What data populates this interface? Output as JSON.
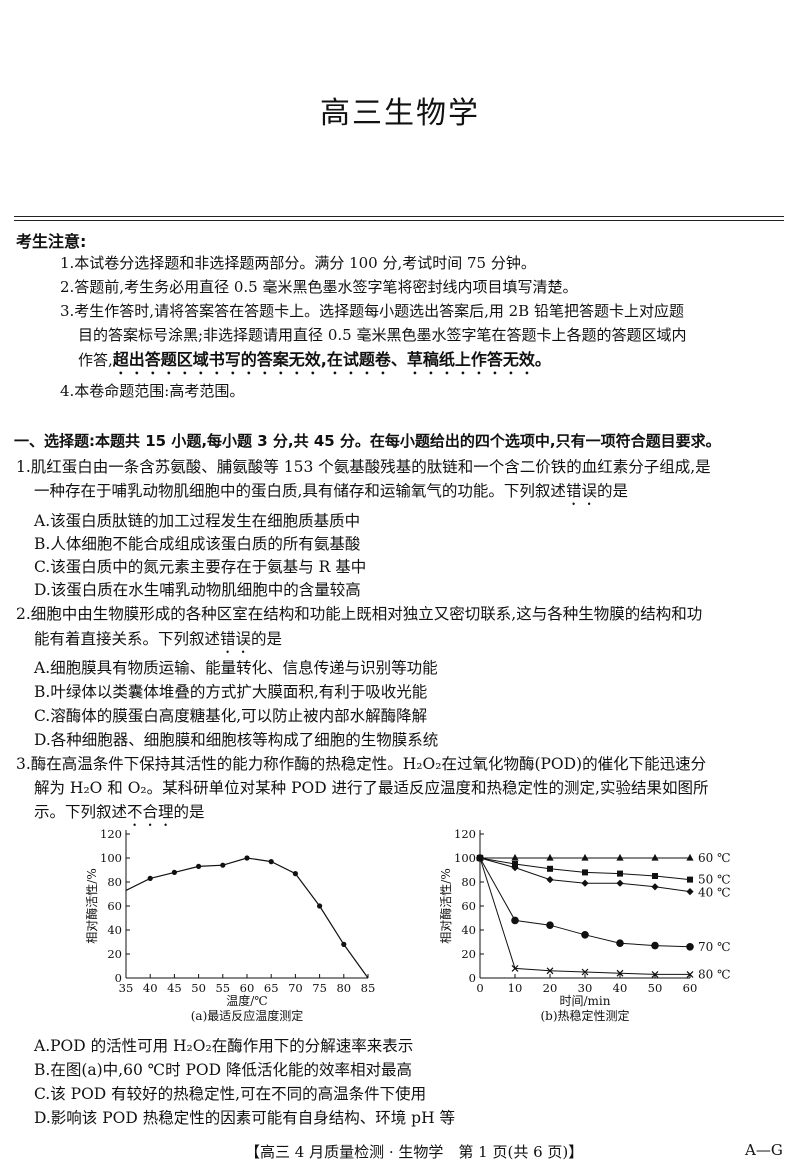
{
  "title": "高三生物学",
  "notice": {
    "heading": "考生注意:",
    "items": [
      "1.本试卷分选择题和非选择题两部分。满分 100 分,考试时间 75 分钟。",
      "2.答题前,考生务必用直径 0.5 毫米黑色墨水签字笔将密封线内项目填写清楚。",
      "3.考生作答时,请将答案答在答题卡上。选择题每小题选出答案后,用 2B 铅笔把答题卡上对应题",
      "目的答案标号涂黑;非选择题请用直径 0.5 毫米黑色墨水签字笔在答题卡上各题的答题区域内",
      "作答,",
      "超出答题区域书写的答案无效,在试题卷、草稿纸上作答无效。",
      "4.本卷命题范围:高考范围。"
    ]
  },
  "section1": "一、选择题:本题共 15 小题,每小题 3 分,共 45 分。在每小题给出的四个选项中,只有一项符合题目要求。",
  "q1": {
    "line1": "1.肌红蛋白由一条含苏氨酸、脯氨酸等 153 个氨基酸残基的肽链和一个含二价铁的血红素分子组成,是",
    "line2a": "一种存在于哺乳动物肌细胞中的蛋白质,具有储存和运输氧气的功能。下列叙述",
    "line2b": "错误",
    "line2c": "的是",
    "options": [
      "A.该蛋白质肽链的加工过程发生在细胞质基质中",
      "B.人体细胞不能合成组成该蛋白质的所有氨基酸",
      "C.该蛋白质中的氮元素主要存在于氨基与 R 基中",
      "D.该蛋白质在水生哺乳动物肌细胞中的含量较高"
    ]
  },
  "q2": {
    "line1": "2.细胞中由生物膜形成的各种区室在结构和功能上既相对独立又密切联系,这与各种生物膜的结构和功",
    "line2a": "能有着直接关系。下列叙述",
    "line2b": "错误",
    "line2c": "的是",
    "options": [
      "A.细胞膜具有物质运输、能量转化、信息传递与识别等功能",
      "B.叶绿体以类囊体堆叠的方式扩大膜面积,有利于吸收光能",
      "C.溶酶体的膜蛋白高度糖基化,可以防止被内部水解酶降解",
      "D.各种细胞器、细胞膜和细胞核等构成了细胞的生物膜系统"
    ]
  },
  "q3": {
    "line1": "3.酶在高温条件下保持其活性的能力称作酶的热稳定性。H₂O₂在过氧化物酶(POD)的催化下能迅速分",
    "line2": "解为 H₂O 和 O₂。某科研单位对某种 POD 进行了最适反应温度和热稳定性的测定,实验结果如图所",
    "line3a": "示。下列叙述",
    "line3b": "不合理",
    "line3c": "的是",
    "options": [
      "A.POD 的活性可用 H₂O₂在酶作用下的分解速率来表示",
      "B.在图(a)中,60 ℃时 POD 降低活化能的效率相对最高",
      "C.该 POD 有较好的热稳定性,可在不同的高温条件下使用",
      "D.影响该 POD 热稳定性的因素可能有自身结构、环境 pH 等"
    ]
  },
  "footer": {
    "center": "【高三 4 月质量检测 · 生物学　第 1 页(共 6 页)】",
    "right": "A—G"
  },
  "chart_data": [
    {
      "type": "line",
      "caption": "(a)最适反应温度测定",
      "xlabel": "温度/℃",
      "ylabel": "相对酶活性/%",
      "xlim": [
        35,
        85
      ],
      "ylim": [
        0,
        120
      ],
      "xticks": [
        35,
        40,
        45,
        50,
        55,
        60,
        65,
        70,
        75,
        80,
        85
      ],
      "yticks": [
        0,
        20,
        40,
        60,
        80,
        100,
        120
      ],
      "x": [
        35,
        40,
        45,
        50,
        55,
        60,
        65,
        70,
        75,
        80,
        85
      ],
      "y": [
        73,
        83,
        88,
        93,
        94,
        100,
        97,
        87,
        60,
        28,
        0
      ],
      "marker_x": [
        40,
        45,
        50,
        55,
        60,
        65,
        70,
        75,
        80
      ]
    },
    {
      "type": "line",
      "caption": "(b)热稳定性测定",
      "xlabel": "时间/min",
      "ylabel": "相对酶活性/%",
      "xlim": [
        0,
        60
      ],
      "ylim": [
        0,
        120
      ],
      "xticks": [
        0,
        10,
        20,
        30,
        40,
        50,
        60
      ],
      "yticks": [
        0,
        20,
        40,
        60,
        80,
        100,
        120
      ],
      "x": [
        0,
        10,
        20,
        30,
        40,
        50,
        60
      ],
      "series": [
        {
          "name": "60 ℃",
          "marker": "triangle",
          "values": [
            100,
            100,
            100,
            100,
            100,
            100,
            100
          ]
        },
        {
          "name": "50 ℃",
          "marker": "square",
          "values": [
            100,
            95,
            91,
            88,
            87,
            85,
            82
          ]
        },
        {
          "name": "40 ℃",
          "marker": "diamond",
          "values": [
            100,
            92,
            82,
            79,
            79,
            76,
            72
          ]
        },
        {
          "name": "70 ℃",
          "marker": "circle",
          "values": [
            100,
            48,
            44,
            36,
            29,
            27,
            26
          ]
        },
        {
          "name": "80 ℃",
          "marker": "cross",
          "values": [
            100,
            8,
            6,
            5,
            4,
            3,
            3
          ]
        }
      ]
    }
  ]
}
